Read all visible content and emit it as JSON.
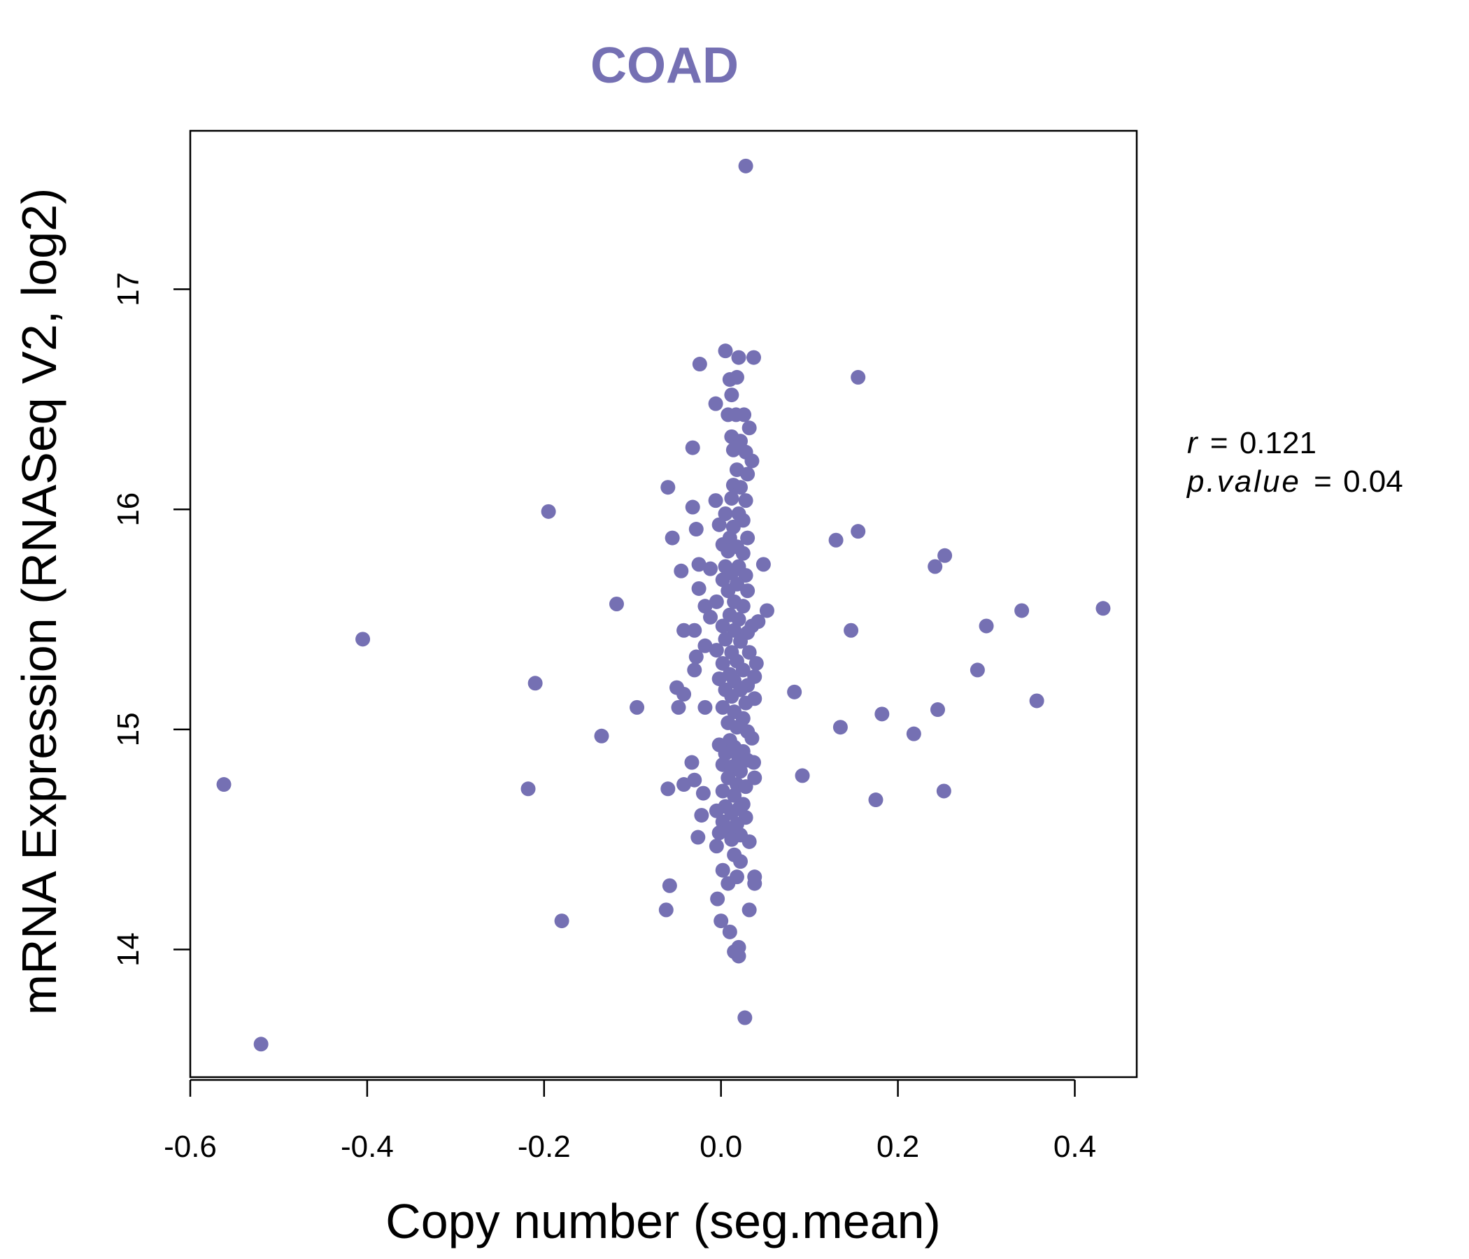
{
  "chart_data": {
    "type": "scatter",
    "title": "COAD",
    "xlabel": "Copy number (seg.mean)",
    "ylabel": "mRNA Expression (RNASeq V2, log2)",
    "xlim": [
      -0.6,
      0.47
    ],
    "ylim": [
      13.42,
      17.72
    ],
    "xticks": [
      -0.6,
      -0.4,
      -0.2,
      0.0,
      0.2,
      0.4
    ],
    "xtick_labels": [
      "-0.6",
      "-0.4",
      "-0.2",
      "0.0",
      "0.2",
      "0.4"
    ],
    "yticks": [
      14,
      15,
      16,
      17
    ],
    "ytick_labels": [
      "14",
      "15",
      "16",
      "17"
    ],
    "grid": false,
    "colors": {
      "points": "#7570b3",
      "title": "#7570b3",
      "axis": "#000000"
    },
    "stats": {
      "r_label": "r",
      "r_value": "0.121",
      "p_label": "p.value",
      "p_value": "0.04"
    },
    "points": [
      [
        0.028,
        17.56
      ],
      [
        0.005,
        16.72
      ],
      [
        0.02,
        16.69
      ],
      [
        0.037,
        16.69
      ],
      [
        -0.024,
        16.66
      ],
      [
        0.155,
        16.6
      ],
      [
        0.01,
        16.59
      ],
      [
        0.018,
        16.6
      ],
      [
        0.012,
        16.52
      ],
      [
        -0.006,
        16.48
      ],
      [
        0.008,
        16.43
      ],
      [
        0.017,
        16.43
      ],
      [
        0.026,
        16.43
      ],
      [
        0.032,
        16.37
      ],
      [
        0.012,
        16.33
      ],
      [
        0.022,
        16.31
      ],
      [
        -0.032,
        16.28
      ],
      [
        0.014,
        16.27
      ],
      [
        0.028,
        16.26
      ],
      [
        0.035,
        16.22
      ],
      [
        0.018,
        16.18
      ],
      [
        0.03,
        16.16
      ],
      [
        0.014,
        16.11
      ],
      [
        0.022,
        16.1
      ],
      [
        -0.06,
        16.1
      ],
      [
        -0.195,
        15.99
      ],
      [
        -0.006,
        16.04
      ],
      [
        0.012,
        16.05
      ],
      [
        0.028,
        16.04
      ],
      [
        -0.032,
        16.01
      ],
      [
        0.005,
        15.98
      ],
      [
        0.02,
        15.98
      ],
      [
        0.025,
        15.95
      ],
      [
        -0.002,
        15.93
      ],
      [
        0.014,
        15.92
      ],
      [
        -0.028,
        15.91
      ],
      [
        0.155,
        15.9
      ],
      [
        0.13,
        15.86
      ],
      [
        -0.055,
        15.87
      ],
      [
        0.01,
        15.87
      ],
      [
        0.03,
        15.87
      ],
      [
        0.002,
        15.84
      ],
      [
        0.018,
        15.83
      ],
      [
        0.008,
        15.81
      ],
      [
        0.025,
        15.8
      ],
      [
        0.253,
        15.79
      ],
      [
        0.242,
        15.74
      ],
      [
        0.048,
        15.75
      ],
      [
        -0.025,
        15.75
      ],
      [
        -0.012,
        15.73
      ],
      [
        0.005,
        15.74
      ],
      [
        0.02,
        15.74
      ],
      [
        -0.045,
        15.72
      ],
      [
        0.012,
        15.71
      ],
      [
        0.028,
        15.7
      ],
      [
        0.002,
        15.68
      ],
      [
        0.018,
        15.66
      ],
      [
        -0.025,
        15.64
      ],
      [
        0.008,
        15.63
      ],
      [
        0.03,
        15.63
      ],
      [
        -0.118,
        15.57
      ],
      [
        0.015,
        15.58
      ],
      [
        -0.005,
        15.58
      ],
      [
        -0.018,
        15.56
      ],
      [
        0.052,
        15.54
      ],
      [
        0.025,
        15.56
      ],
      [
        0.432,
        15.55
      ],
      [
        0.34,
        15.54
      ],
      [
        0.01,
        15.52
      ],
      [
        -0.012,
        15.51
      ],
      [
        0.042,
        15.49
      ],
      [
        0.02,
        15.5
      ],
      [
        0.3,
        15.47
      ],
      [
        0.002,
        15.47
      ],
      [
        0.035,
        15.47
      ],
      [
        -0.042,
        15.45
      ],
      [
        -0.03,
        15.45
      ],
      [
        0.147,
        15.45
      ],
      [
        0.015,
        15.45
      ],
      [
        0.03,
        15.44
      ],
      [
        -0.405,
        15.41
      ],
      [
        0.005,
        15.41
      ],
      [
        0.022,
        15.4
      ],
      [
        -0.018,
        15.38
      ],
      [
        -0.005,
        15.36
      ],
      [
        0.012,
        15.35
      ],
      [
        0.032,
        15.35
      ],
      [
        -0.028,
        15.33
      ],
      [
        0.018,
        15.31
      ],
      [
        0.04,
        15.3
      ],
      [
        0.002,
        15.3
      ],
      [
        -0.03,
        15.27
      ],
      [
        0.29,
        15.27
      ],
      [
        0.025,
        15.27
      ],
      [
        0.01,
        15.25
      ],
      [
        0.038,
        15.24
      ],
      [
        -0.002,
        15.23
      ],
      [
        0.015,
        15.22
      ],
      [
        -0.21,
        15.21
      ],
      [
        0.03,
        15.2
      ],
      [
        -0.05,
        15.19
      ],
      [
        0.005,
        15.18
      ],
      [
        0.022,
        15.18
      ],
      [
        -0.042,
        15.16
      ],
      [
        0.083,
        15.17
      ],
      [
        0.012,
        15.15
      ],
      [
        0.038,
        15.14
      ],
      [
        0.357,
        15.13
      ],
      [
        0.028,
        15.12
      ],
      [
        -0.018,
        15.1
      ],
      [
        -0.095,
        15.1
      ],
      [
        -0.048,
        15.1
      ],
      [
        0.002,
        15.1
      ],
      [
        0.245,
        15.09
      ],
      [
        0.015,
        15.08
      ],
      [
        0.182,
        15.07
      ],
      [
        0.025,
        15.05
      ],
      [
        0.008,
        15.03
      ],
      [
        0.135,
        15.01
      ],
      [
        0.018,
        15.01
      ],
      [
        0.03,
        14.99
      ],
      [
        0.218,
        14.98
      ],
      [
        -0.135,
        14.97
      ],
      [
        0.035,
        14.96
      ],
      [
        0.01,
        14.95
      ],
      [
        -0.002,
        14.93
      ],
      [
        0.015,
        14.92
      ],
      [
        0.025,
        14.9
      ],
      [
        0.005,
        14.89
      ],
      [
        0.02,
        14.87
      ],
      [
        0.03,
        14.86
      ],
      [
        -0.033,
        14.85
      ],
      [
        0.037,
        14.85
      ],
      [
        0.002,
        14.84
      ],
      [
        0.012,
        14.83
      ],
      [
        0.022,
        14.81
      ],
      [
        0.092,
        14.79
      ],
      [
        0.038,
        14.78
      ],
      [
        0.008,
        14.78
      ],
      [
        -0.03,
        14.77
      ],
      [
        -0.042,
        14.75
      ],
      [
        -0.562,
        14.75
      ],
      [
        0.018,
        14.75
      ],
      [
        0.028,
        14.74
      ],
      [
        -0.218,
        14.73
      ],
      [
        -0.06,
        14.73
      ],
      [
        0.252,
        14.72
      ],
      [
        0.002,
        14.72
      ],
      [
        -0.02,
        14.71
      ],
      [
        0.015,
        14.7
      ],
      [
        0.175,
        14.68
      ],
      [
        0.025,
        14.66
      ],
      [
        0.005,
        14.65
      ],
      [
        0.02,
        14.64
      ],
      [
        -0.005,
        14.63
      ],
      [
        0.012,
        14.62
      ],
      [
        -0.022,
        14.61
      ],
      [
        0.028,
        14.6
      ],
      [
        0.002,
        14.58
      ],
      [
        0.018,
        14.57
      ],
      [
        0.008,
        14.55
      ],
      [
        -0.002,
        14.53
      ],
      [
        0.022,
        14.52
      ],
      [
        -0.026,
        14.51
      ],
      [
        0.012,
        14.5
      ],
      [
        0.032,
        14.49
      ],
      [
        -0.005,
        14.47
      ],
      [
        0.015,
        14.43
      ],
      [
        0.022,
        14.4
      ],
      [
        0.002,
        14.36
      ],
      [
        0.038,
        14.33
      ],
      [
        0.018,
        14.33
      ],
      [
        -0.058,
        14.29
      ],
      [
        0.008,
        14.3
      ],
      [
        0.038,
        14.3
      ],
      [
        -0.004,
        14.23
      ],
      [
        -0.062,
        14.18
      ],
      [
        0.032,
        14.18
      ],
      [
        -0.18,
        14.13
      ],
      [
        0.0,
        14.13
      ],
      [
        0.01,
        14.08
      ],
      [
        0.02,
        14.01
      ],
      [
        0.015,
        13.99
      ],
      [
        0.02,
        13.97
      ],
      [
        0.027,
        13.69
      ],
      [
        -0.52,
        13.57
      ]
    ]
  }
}
